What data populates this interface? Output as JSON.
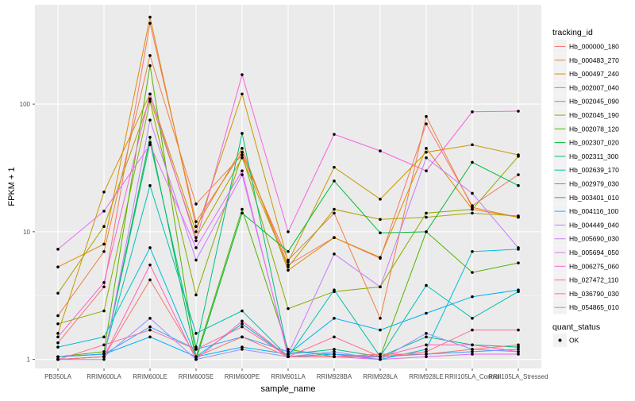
{
  "chart_data": {
    "type": "line",
    "xlabel": "sample_name",
    "ylabel": "FPKM + 1",
    "y_scale": "log10",
    "ylim": [
      0.85,
      600
    ],
    "y_ticks": [
      1,
      10,
      100
    ],
    "y_tick_labels": [
      "1",
      "10",
      "100"
    ],
    "grid": true,
    "panel_background": "#ebebeb",
    "legend_position": "right",
    "categories": [
      "PB350LA",
      "RRIM600LA",
      "RRIM600LE",
      "RRIM600SE",
      "RRIM600PE",
      "RRIM901LA",
      "RRIM928BA",
      "RRIM928LA",
      "RRIM928LE",
      "RRII105LA_Control",
      "RRII105LA_Stressed"
    ],
    "legend_title": "tracking_id",
    "series": [
      {
        "name": "Hb_000000_180",
        "color": "#F8766D",
        "values": [
          1.35,
          3.7,
          430,
          12,
          42,
          5.5,
          9,
          6.2,
          70,
          16,
          28
        ]
      },
      {
        "name": "Hb_000483_270",
        "color": "#EE8044",
        "values": [
          2.2,
          7,
          240,
          16.5,
          40,
          6,
          14,
          2.1,
          80,
          15.5,
          13
        ]
      },
      {
        "name": "Hb_000497_240",
        "color": "#DE8C00",
        "values": [
          5.3,
          8,
          480,
          11,
          45,
          5,
          9,
          6.3,
          45,
          15,
          13
        ]
      },
      {
        "name": "Hb_002007_040",
        "color": "#C99800",
        "values": [
          1.6,
          20.5,
          120,
          10,
          120,
          5.8,
          32,
          18,
          42,
          48,
          40
        ]
      },
      {
        "name": "Hb_002045_090",
        "color": "#AFA100",
        "values": [
          3.3,
          11,
          110,
          9,
          38,
          5.3,
          15,
          12.5,
          13,
          14,
          13.3
        ]
      },
      {
        "name": "Hb_002045_190",
        "color": "#8BAB00",
        "values": [
          1.9,
          2.4,
          105,
          3.2,
          40,
          2.5,
          3.4,
          3.7,
          14,
          15,
          39
        ]
      },
      {
        "name": "Hb_002078_120",
        "color": "#53B400",
        "values": [
          1.05,
          1.15,
          200,
          1.05,
          15,
          1.2,
          1.05,
          1.05,
          10,
          4.8,
          5.7
        ]
      },
      {
        "name": "Hb_002307_020",
        "color": "#00BA38",
        "values": [
          1.0,
          1.05,
          55,
          1.0,
          14,
          7,
          25,
          9.8,
          10,
          35,
          23
        ]
      },
      {
        "name": "Hb_002311_300",
        "color": "#00BF7D",
        "values": [
          1.0,
          1.05,
          50,
          1.25,
          59,
          1.1,
          1.2,
          1.05,
          1.5,
          1.3,
          1.25
        ]
      },
      {
        "name": "Hb_002639_170",
        "color": "#00C0AF",
        "values": [
          1.05,
          1.1,
          23,
          1.6,
          2.4,
          1.05,
          3.5,
          1.05,
          3.8,
          2.1,
          3.4
        ]
      },
      {
        "name": "Hb_002979_030",
        "color": "#00BCD8",
        "values": [
          1.25,
          1.5,
          7.5,
          1.05,
          1.9,
          1.05,
          1.1,
          1.0,
          1.2,
          7,
          7.3
        ]
      },
      {
        "name": "Hb_003401_010",
        "color": "#00B0F6",
        "values": [
          1.05,
          1.1,
          1.5,
          1.05,
          1.25,
          1.1,
          2.1,
          1.7,
          2.3,
          3.1,
          3.5
        ]
      },
      {
        "name": "Hb_004116_100",
        "color": "#35A2FF",
        "values": [
          1.05,
          1.1,
          1.8,
          1.2,
          1.5,
          1.15,
          1.1,
          1.05,
          1.1,
          1.15,
          1.2
        ]
      },
      {
        "name": "Hb_004449_040",
        "color": "#9590FF",
        "values": [
          1.0,
          1.05,
          2.1,
          1.0,
          1.2,
          1.05,
          1.15,
          1.0,
          1.6,
          1.2,
          1.15
        ]
      },
      {
        "name": "Hb_005690_030",
        "color": "#C77CFF",
        "values": [
          1.0,
          1.0,
          75,
          6,
          28,
          1.1,
          6.7,
          3.7,
          38,
          20,
          7.5
        ]
      },
      {
        "name": "Hb_005694_050",
        "color": "#E76BF3",
        "values": [
          7.3,
          14.5,
          48,
          7.5,
          30,
          1.05,
          1.05,
          1.0,
          1.05,
          1.1,
          1.1
        ]
      },
      {
        "name": "Hb_006275_060",
        "color": "#FA62DB",
        "values": [
          1.5,
          4,
          120,
          8.5,
          170,
          10,
          58,
          43,
          30,
          87,
          88
        ]
      },
      {
        "name": "Hb_027472_110",
        "color": "#FF62BC",
        "values": [
          1.0,
          1.05,
          5.5,
          1.0,
          2.0,
          1.05,
          1.05,
          1.05,
          1.3,
          1.3,
          1.15
        ]
      },
      {
        "name": "Hb_036790_030",
        "color": "#FF6C91",
        "values": [
          1.0,
          1.3,
          1.7,
          1.2,
          1.8,
          1.05,
          1.5,
          1.05,
          1.15,
          1.7,
          1.7
        ]
      },
      {
        "name": "Hb_054865_010",
        "color": "#F8766D",
        "values": [
          1.0,
          1.05,
          4.2,
          1.05,
          1.5,
          1.05,
          1.05,
          1.1,
          1.1,
          1.2,
          1.3
        ]
      }
    ]
  },
  "legend2": {
    "title": "quant_status",
    "items": [
      {
        "label": "OK"
      }
    ]
  }
}
